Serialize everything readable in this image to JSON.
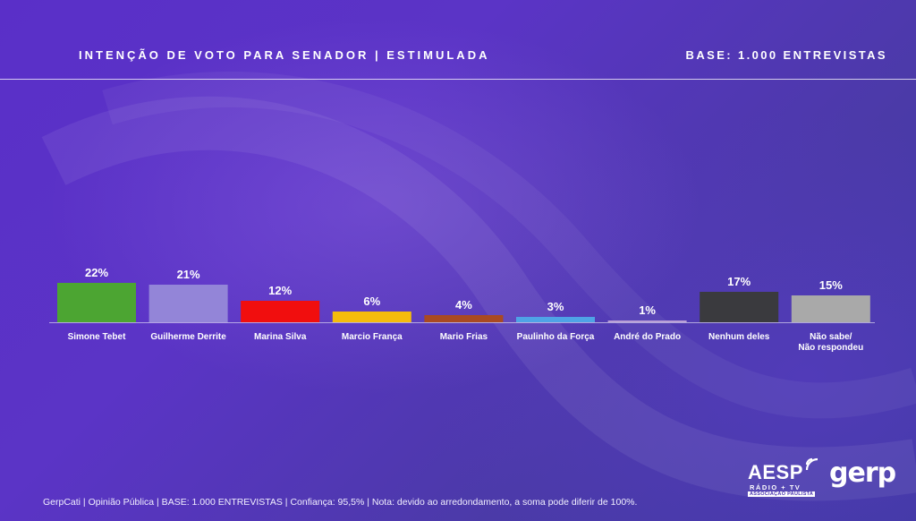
{
  "header": {
    "title": "INTENÇÃO DE VOTO PARA SENADOR | ESTIMULADA",
    "base": "BASE: 1.000 ENTREVISTAS"
  },
  "chart_data": {
    "type": "bar",
    "categories": [
      "Simone Tebet",
      "Guilherme Derrite",
      "Marina Silva",
      "Marcio França",
      "Mario Frias",
      "Paulinho da Força",
      "André do Prado",
      "Nenhum deles",
      "Não sabe/Não respondeu"
    ],
    "values": [
      22,
      21,
      12,
      6,
      4,
      3,
      1,
      17,
      15
    ],
    "value_labels": [
      "22%",
      "21%",
      "12%",
      "6%",
      "4%",
      "3%",
      "1%",
      "17%",
      "15%"
    ],
    "colors": [
      "#4ca532",
      "#9385d8",
      "#f10e0e",
      "#f5bc0c",
      "#a94a22",
      "#4fa3e6",
      "#b99fd6",
      "#3a3a3e",
      "#a9a9a9"
    ],
    "ylim": [
      0,
      22
    ],
    "grid": false,
    "legend": "none"
  },
  "footer": {
    "note": "GerpCati | Opinião Pública | BASE: 1.000 ENTREVISTAS | Confiança: 95,5% | Nota: devido ao arredondamento, a soma pode diferir de 100%."
  },
  "logos": {
    "aesp": "AESP",
    "aesp_sub": "RÁDIO + TV",
    "aesp_sub2": "ASSOCIAÇÃO PAULISTA",
    "gerp": "gerp"
  }
}
